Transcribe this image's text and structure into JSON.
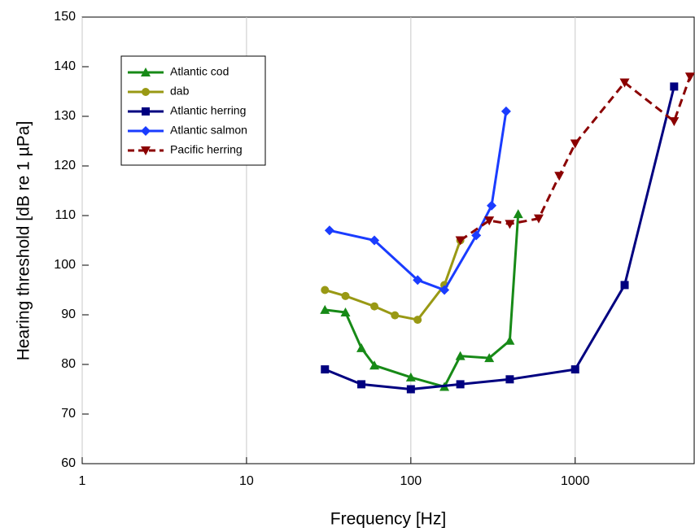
{
  "chart_data": {
    "type": "line",
    "xlabel": "Frequency [Hz]",
    "ylabel": "Hearing threshold [dB re 1 µPa]",
    "xscale": "log",
    "xlim": [
      1,
      5300
    ],
    "xticks": [
      1,
      10,
      100,
      1000
    ],
    "ylim": [
      60,
      150
    ],
    "yticks": [
      60,
      70,
      80,
      90,
      100,
      110,
      120,
      130,
      140,
      150
    ],
    "legend": "upper left",
    "series": [
      {
        "name": "Atlantic cod",
        "color": "#178a17",
        "marker": "triangle-up",
        "linestyle": "solid",
        "x": [
          30,
          40,
          50,
          60,
          100,
          160,
          200,
          300,
          400,
          450
        ],
        "values": [
          91,
          90.5,
          83.3,
          79.8,
          77.4,
          75.5,
          81.7,
          81.3,
          84.8,
          110.3
        ]
      },
      {
        "name": "dab",
        "color": "#999914",
        "marker": "circle",
        "linestyle": "solid",
        "x": [
          30,
          40,
          60,
          80,
          110,
          160,
          200
        ],
        "values": [
          95,
          93.8,
          91.7,
          89.9,
          89,
          96,
          105
        ]
      },
      {
        "name": "Atlantic herring",
        "color": "#000080",
        "marker": "square",
        "linestyle": "solid",
        "x": [
          30,
          50,
          100,
          200,
          400,
          1000,
          2000,
          4000
        ],
        "values": [
          79,
          76,
          75,
          76,
          77,
          79,
          96,
          136
        ]
      },
      {
        "name": "Atlantic salmon",
        "color": "#1a3cff",
        "marker": "diamond",
        "linestyle": "solid",
        "x": [
          32,
          60,
          110,
          160,
          250,
          310,
          380
        ],
        "values": [
          107,
          105,
          97,
          95,
          106,
          112,
          131
        ]
      },
      {
        "name": "Pacific herring",
        "color": "#8b0000",
        "marker": "triangle-down",
        "linestyle": "dashed",
        "x": [
          200,
          300,
          400,
          600,
          800,
          1000,
          2000,
          4000,
          5000
        ],
        "values": [
          105,
          109,
          108.3,
          109.4,
          118,
          124.5,
          136.8,
          129,
          138
        ]
      }
    ]
  }
}
